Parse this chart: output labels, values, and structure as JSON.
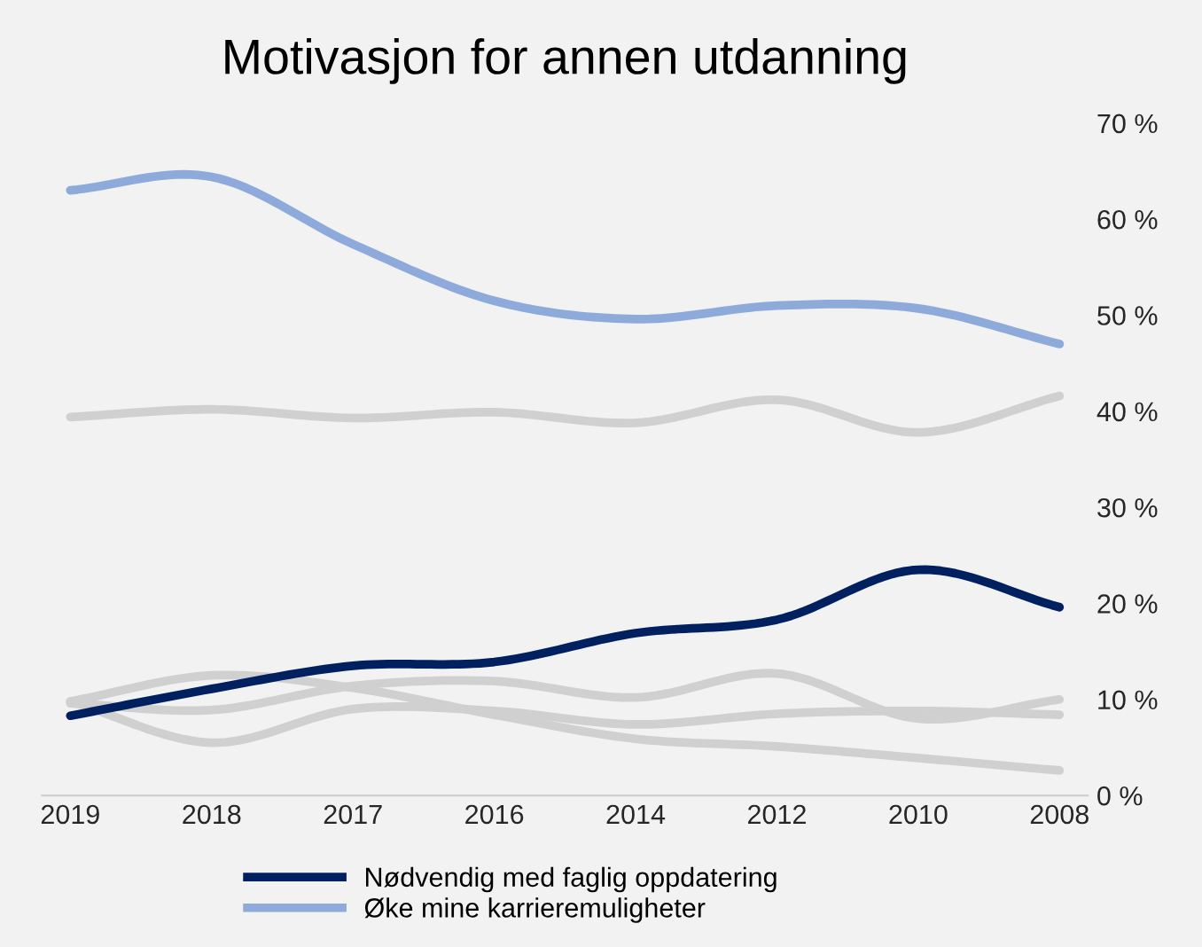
{
  "chart_data": {
    "type": "line",
    "title": "Motivasjon for annen utdanning",
    "categories": [
      "2019",
      "2018",
      "2017",
      "2016",
      "2014",
      "2012",
      "2010",
      "2008"
    ],
    "ylim": [
      0,
      70
    ],
    "yticks": [
      {
        "value": 0,
        "label": "0 %"
      },
      {
        "value": 10,
        "label": "10 %"
      },
      {
        "value": 20,
        "label": "20 %"
      },
      {
        "value": 30,
        "label": "30 %"
      },
      {
        "value": 40,
        "label": "40 %"
      },
      {
        "value": 50,
        "label": "50 %"
      },
      {
        "value": 60,
        "label": "60 %"
      },
      {
        "value": 70,
        "label": "70 %"
      }
    ],
    "grid": false,
    "legend": "bottom",
    "marker": "none",
    "line_style": "solid",
    "series": [
      {
        "color": "#d0d0d0",
        "values": [
          39.4,
          40.2,
          39.3,
          39.9,
          38.8,
          41.2,
          37.8,
          41.6
        ]
      },
      {
        "color": "#d0d0d0",
        "values": [
          9.8,
          5.5,
          9.0,
          8.8,
          7.4,
          8.5,
          8.8,
          8.4
        ]
      },
      {
        "color": "#d0d0d0",
        "values": [
          9.8,
          12.5,
          11.2,
          8.4,
          5.9,
          5.1,
          3.9,
          2.6
        ]
      },
      {
        "color": "#d0d0d0",
        "values": [
          9.6,
          8.9,
          11.4,
          11.9,
          10.2,
          12.7,
          8.0,
          10.0
        ]
      },
      {
        "name": "Nødvendig med faglig oppdatering",
        "color": "#002060",
        "values": [
          8.3,
          11.1,
          13.5,
          13.9,
          16.9,
          18.3,
          23.5,
          19.6
        ]
      },
      {
        "name": "Øke mine karrieremuligheter",
        "color": "#8eaadb",
        "values": [
          63.0,
          64.4,
          57.4,
          51.5,
          49.6,
          51.0,
          50.7,
          47.0
        ]
      }
    ]
  }
}
